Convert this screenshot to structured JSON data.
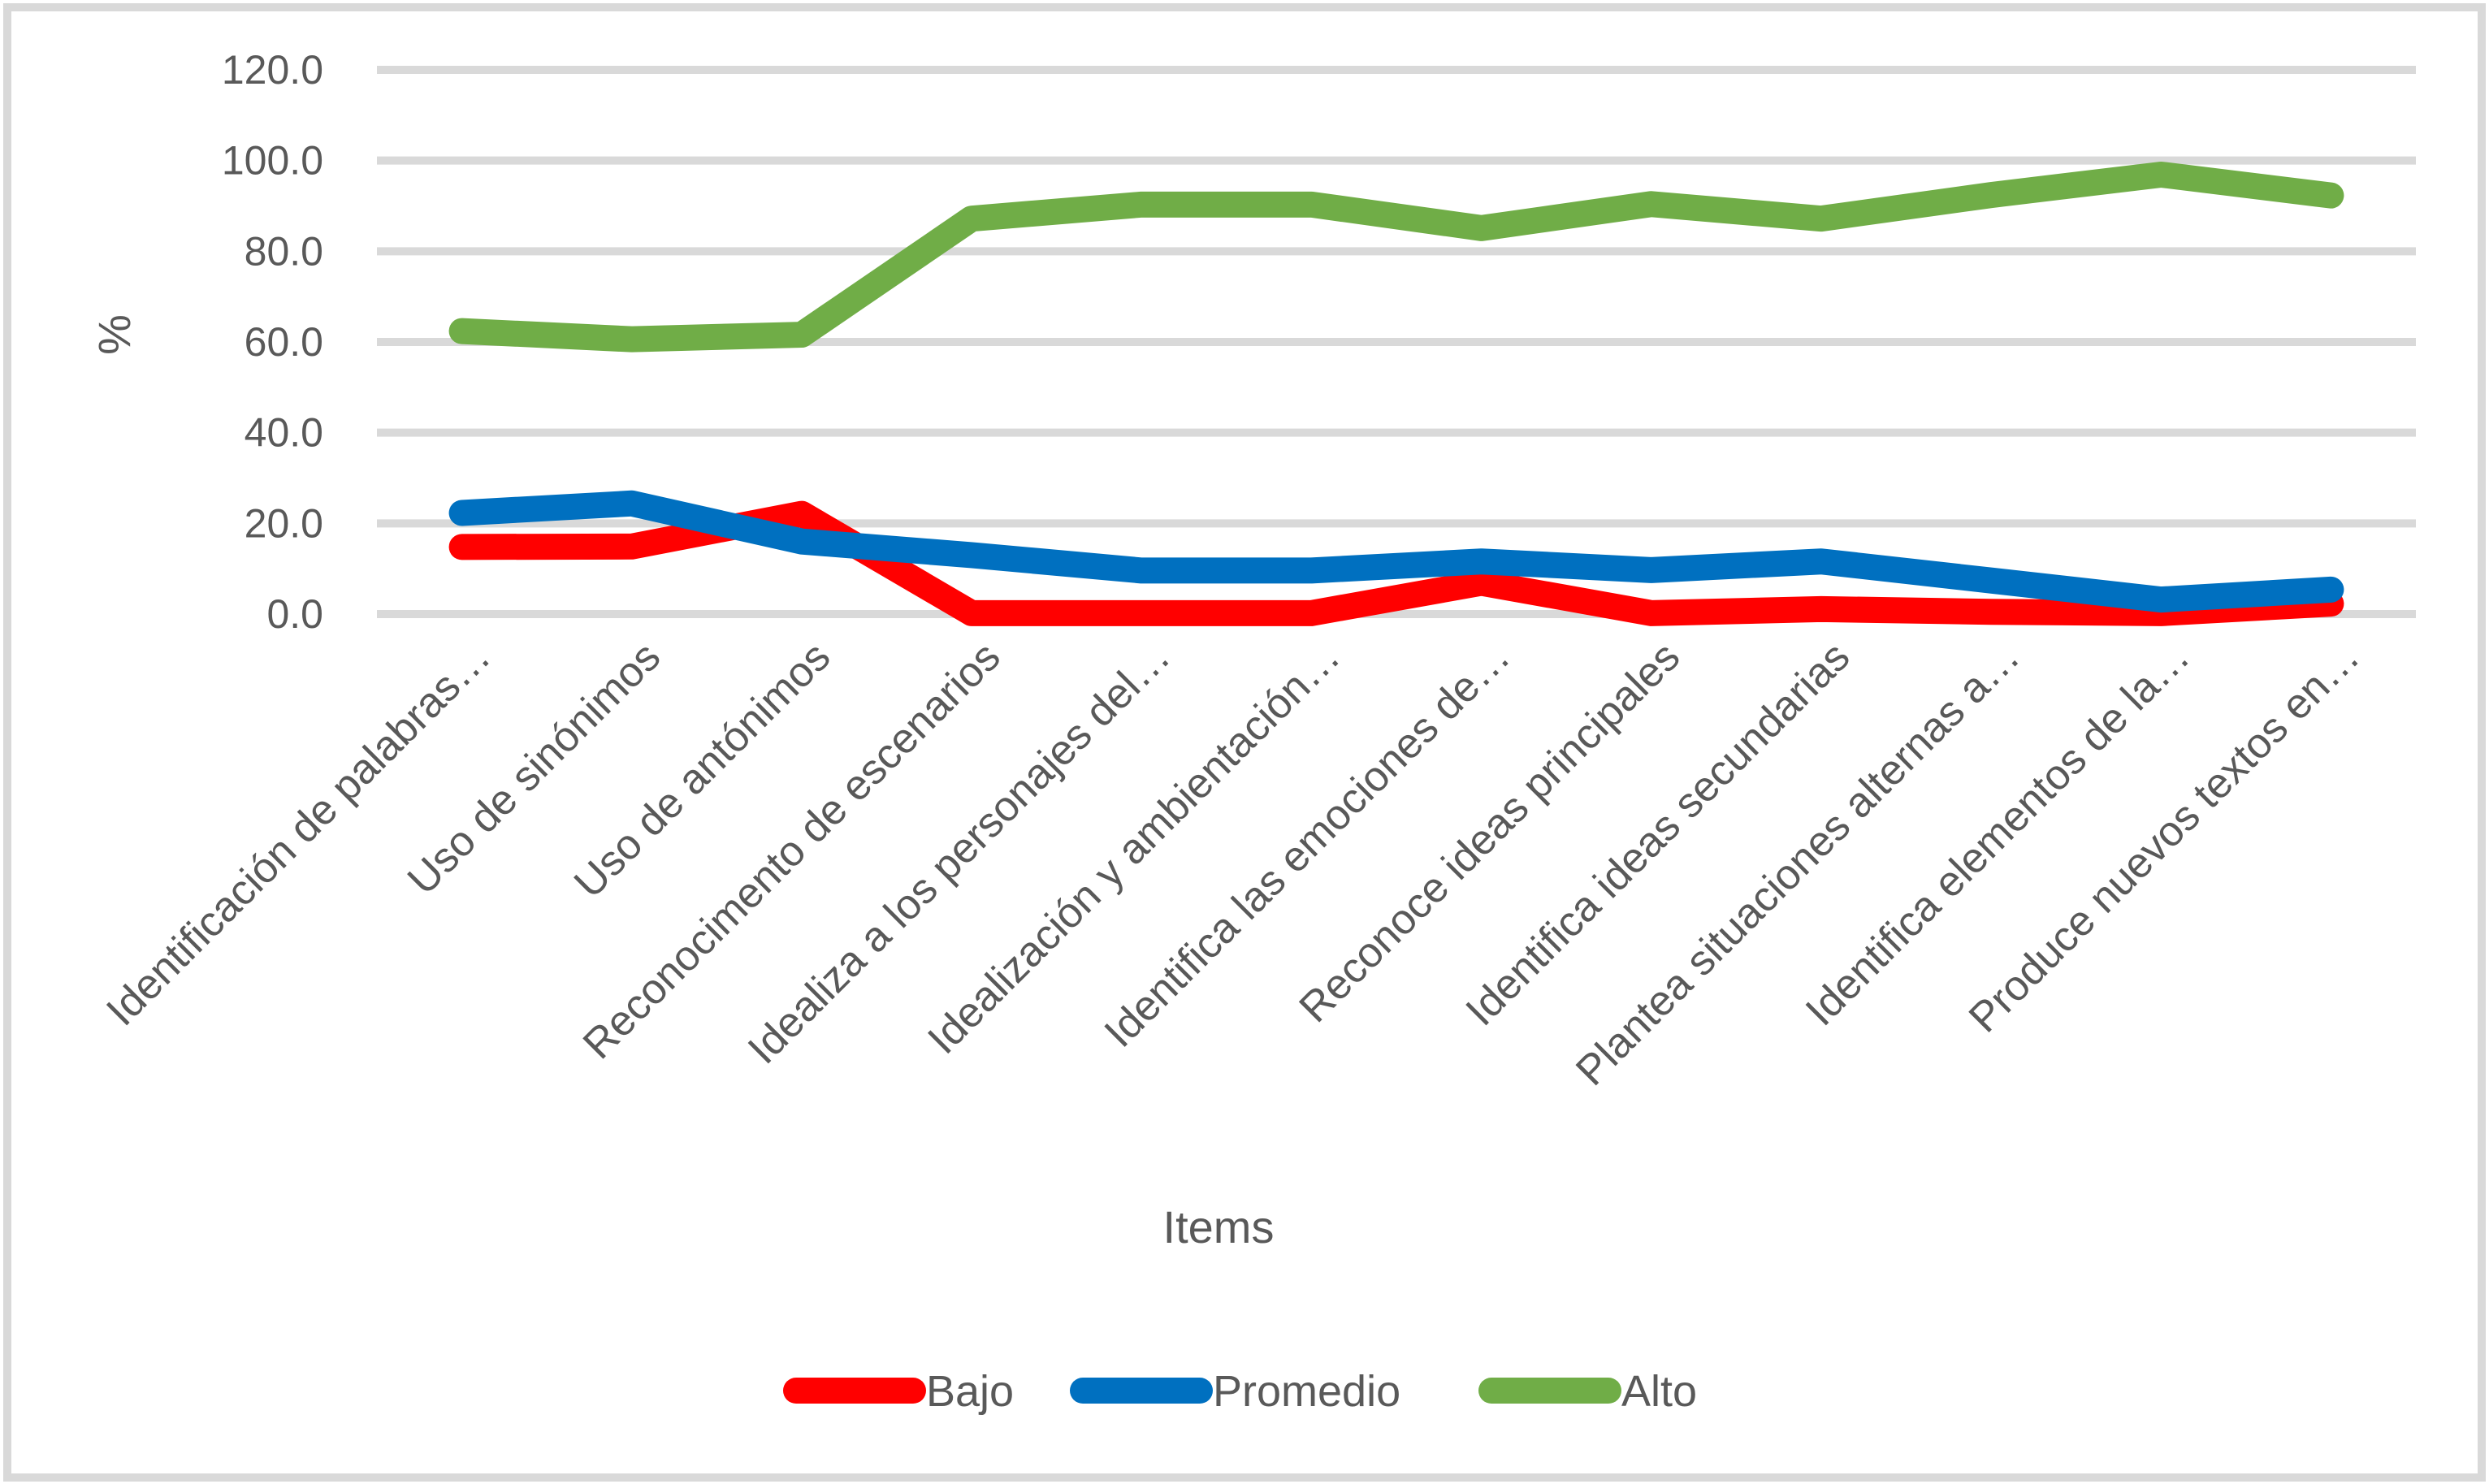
{
  "chart_data": {
    "type": "line",
    "title": "",
    "xlabel": "Items",
    "ylabel": "%",
    "ylim": [
      0,
      120
    ],
    "yticks": [
      "0.0",
      "20.0",
      "40.0",
      "60.0",
      "80.0",
      "100.0",
      "120.0"
    ],
    "grid": true,
    "legend_position": "bottom",
    "categories": [
      "Identificación de palabras…",
      "Uso de sinónimos",
      "Uso de antónimos",
      "Reconocimento de escenarios",
      "Idealiza a los personajes del…",
      "Idealización y ambientación…",
      "Identifica las emociones de…",
      "Reconoce ideas principales",
      "Identifica ideas secundarias",
      "Plantea situaciones alternas a…",
      "Identifica elementos de la…",
      "Produce nuevos textos en…"
    ],
    "series": [
      {
        "name": "Bajo",
        "color": "#ff0000",
        "values": [
          14.8,
          14.9,
          22.1,
          0.2,
          0.2,
          0.2,
          6.9,
          0.2,
          1.1,
          0.5,
          0.2,
          2.3
        ]
      },
      {
        "name": "Promedio",
        "color": "#0070c0",
        "values": [
          22.3,
          24.4,
          16.0,
          13.0,
          9.6,
          9.6,
          11.6,
          9.7,
          11.6,
          7.4,
          3.2,
          5.4
        ]
      },
      {
        "name": "Alto",
        "color": "#70ad47",
        "values": [
          62.4,
          60.6,
          61.6,
          87.2,
          90.3,
          90.3,
          85.1,
          90.4,
          87.2,
          92.4,
          96.9,
          92.3
        ]
      }
    ]
  },
  "colors": {
    "gridline": "#d9d9d9",
    "text": "#595959",
    "border": "#d9d9d9"
  }
}
